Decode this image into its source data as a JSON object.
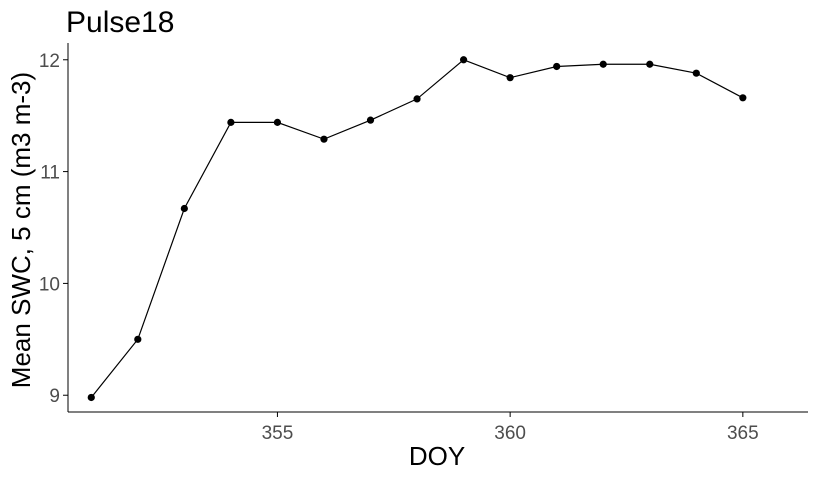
{
  "chart_data": {
    "type": "line",
    "title": "Pulse18",
    "xlabel": "DOY",
    "ylabel": "Mean SWC, 5 cm (m3 m-3)",
    "x": [
      351,
      352,
      353,
      354,
      355,
      356,
      357,
      358,
      359,
      360,
      361,
      362,
      363,
      364,
      365
    ],
    "series": [
      {
        "values": [
          8.98,
          9.5,
          10.67,
          11.44,
          11.44,
          11.29,
          11.46,
          11.65,
          12.0,
          11.84,
          11.94,
          11.96,
          11.96,
          11.88,
          11.66
        ]
      }
    ],
    "xlim": [
      350.5,
      366.4
    ],
    "ylim": [
      8.85,
      12.15
    ],
    "x_ticks": [
      355,
      360,
      365
    ],
    "x_tick_labels": [
      "355",
      "360",
      "365"
    ],
    "y_ticks": [
      9,
      10,
      11,
      12
    ],
    "y_tick_labels": [
      "9",
      "10",
      "11",
      "12"
    ],
    "grid": false,
    "legend": "none",
    "colors": {
      "line": "#000000",
      "point": "#000000",
      "axis": "#000000",
      "tick_text": "#4d4d4d",
      "background": "#ffffff"
    }
  }
}
